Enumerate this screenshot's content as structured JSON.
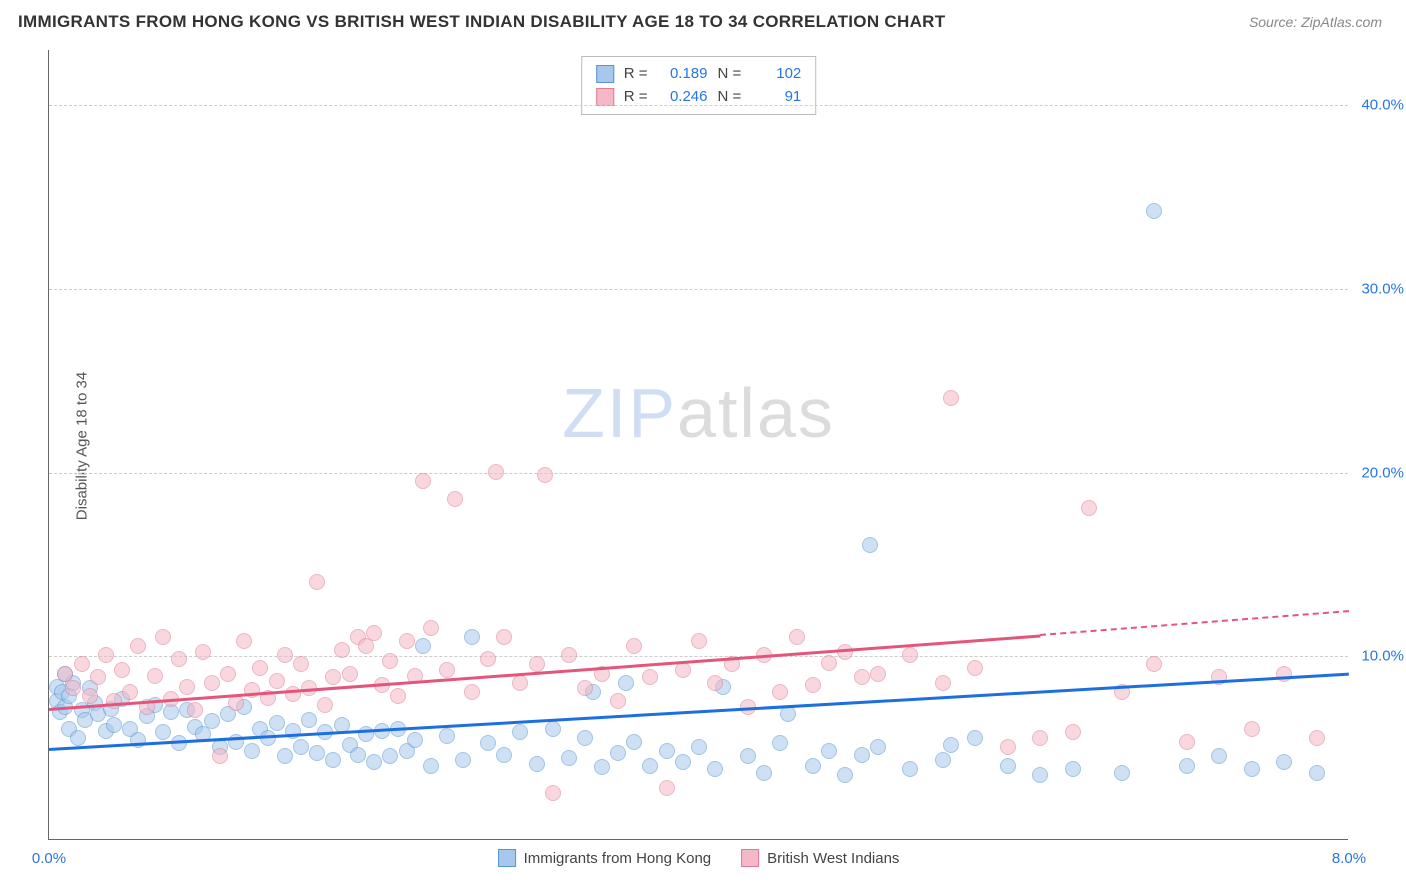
{
  "title": "IMMIGRANTS FROM HONG KONG VS BRITISH WEST INDIAN DISABILITY AGE 18 TO 34 CORRELATION CHART",
  "source": "Source: ZipAtlas.com",
  "ylabel": "Disability Age 18 to 34",
  "watermark_a": "ZIP",
  "watermark_b": "atlas",
  "chart": {
    "type": "scatter",
    "xlim": [
      0,
      8
    ],
    "ylim": [
      0,
      43
    ],
    "xticks": [
      {
        "v": 0,
        "l": "0.0%"
      },
      {
        "v": 8,
        "l": "8.0%"
      }
    ],
    "yticks": [
      {
        "v": 10,
        "l": "10.0%"
      },
      {
        "v": 20,
        "l": "20.0%"
      },
      {
        "v": 30,
        "l": "30.0%"
      },
      {
        "v": 40,
        "l": "40.0%"
      }
    ],
    "grid_color": "#cccccc",
    "background_color": "#ffffff",
    "axis_color": "#666666",
    "tick_color": "#2874e8",
    "marker_radius": 8,
    "marker_opacity": 0.55,
    "series": [
      {
        "name": "Immigrants from Hong Kong",
        "fill": "#a6c8ec",
        "stroke": "#5a93d1",
        "trend_color": "#1d6fe0",
        "trend": {
          "x1": 0,
          "y1": 5.0,
          "x2": 8,
          "y2": 9.1,
          "dash_from_x": 8
        },
        "R": "0.189",
        "N": "102",
        "points": [
          [
            0.05,
            7.5
          ],
          [
            0.05,
            8.3
          ],
          [
            0.07,
            6.9
          ],
          [
            0.08,
            8.0
          ],
          [
            0.1,
            7.2
          ],
          [
            0.1,
            9.0
          ],
          [
            0.12,
            6.0
          ],
          [
            0.12,
            7.8
          ],
          [
            0.15,
            8.5
          ],
          [
            0.18,
            5.5
          ],
          [
            0.2,
            7.0
          ],
          [
            0.22,
            6.5
          ],
          [
            0.25,
            8.2
          ],
          [
            0.28,
            7.4
          ],
          [
            0.3,
            6.8
          ],
          [
            0.35,
            5.9
          ],
          [
            0.38,
            7.1
          ],
          [
            0.4,
            6.2
          ],
          [
            0.45,
            7.6
          ],
          [
            0.5,
            6.0
          ],
          [
            0.55,
            5.4
          ],
          [
            0.6,
            6.7
          ],
          [
            0.65,
            7.3
          ],
          [
            0.7,
            5.8
          ],
          [
            0.75,
            6.9
          ],
          [
            0.8,
            5.2
          ],
          [
            0.85,
            7.0
          ],
          [
            0.9,
            6.1
          ],
          [
            0.95,
            5.7
          ],
          [
            1.0,
            6.4
          ],
          [
            1.05,
            5.0
          ],
          [
            1.1,
            6.8
          ],
          [
            1.15,
            5.3
          ],
          [
            1.2,
            7.2
          ],
          [
            1.25,
            4.8
          ],
          [
            1.3,
            6.0
          ],
          [
            1.35,
            5.5
          ],
          [
            1.4,
            6.3
          ],
          [
            1.45,
            4.5
          ],
          [
            1.5,
            5.9
          ],
          [
            1.55,
            5.0
          ],
          [
            1.6,
            6.5
          ],
          [
            1.65,
            4.7
          ],
          [
            1.7,
            5.8
          ],
          [
            1.75,
            4.3
          ],
          [
            1.8,
            6.2
          ],
          [
            1.85,
            5.1
          ],
          [
            1.9,
            4.6
          ],
          [
            1.95,
            5.7
          ],
          [
            2.0,
            4.2
          ],
          [
            2.05,
            5.9
          ],
          [
            2.1,
            4.5
          ],
          [
            2.15,
            6.0
          ],
          [
            2.2,
            4.8
          ],
          [
            2.25,
            5.4
          ],
          [
            2.3,
            10.5
          ],
          [
            2.35,
            4.0
          ],
          [
            2.45,
            5.6
          ],
          [
            2.55,
            4.3
          ],
          [
            2.6,
            11.0
          ],
          [
            2.7,
            5.2
          ],
          [
            2.8,
            4.6
          ],
          [
            2.9,
            5.8
          ],
          [
            3.0,
            4.1
          ],
          [
            3.1,
            6.0
          ],
          [
            3.2,
            4.4
          ],
          [
            3.3,
            5.5
          ],
          [
            3.35,
            8.0
          ],
          [
            3.4,
            3.9
          ],
          [
            3.5,
            4.7
          ],
          [
            3.55,
            8.5
          ],
          [
            3.6,
            5.3
          ],
          [
            3.7,
            4.0
          ],
          [
            3.8,
            4.8
          ],
          [
            3.9,
            4.2
          ],
          [
            4.0,
            5.0
          ],
          [
            4.1,
            3.8
          ],
          [
            4.15,
            8.3
          ],
          [
            4.3,
            4.5
          ],
          [
            4.4,
            3.6
          ],
          [
            4.5,
            5.2
          ],
          [
            4.55,
            6.8
          ],
          [
            4.7,
            4.0
          ],
          [
            4.8,
            4.8
          ],
          [
            4.9,
            3.5
          ],
          [
            5.0,
            4.6
          ],
          [
            5.05,
            16.0
          ],
          [
            5.1,
            5.0
          ],
          [
            5.3,
            3.8
          ],
          [
            5.5,
            4.3
          ],
          [
            5.55,
            5.1
          ],
          [
            5.7,
            5.5
          ],
          [
            5.9,
            4.0
          ],
          [
            6.1,
            3.5
          ],
          [
            6.3,
            3.8
          ],
          [
            6.6,
            3.6
          ],
          [
            6.8,
            34.2
          ],
          [
            7.0,
            4.0
          ],
          [
            7.2,
            4.5
          ],
          [
            7.4,
            3.8
          ],
          [
            7.6,
            4.2
          ],
          [
            7.8,
            3.6
          ]
        ]
      },
      {
        "name": "British West Indians",
        "fill": "#f4b8c6",
        "stroke": "#e07a95",
        "trend_color": "#e4557c",
        "trend": {
          "x1": 0,
          "y1": 7.2,
          "x2": 6.1,
          "y2": 11.2,
          "dash_from_x": 6.1,
          "dash_x2": 8,
          "dash_y2": 12.5
        },
        "R": "0.246",
        "N": "91",
        "points": [
          [
            0.1,
            9.0
          ],
          [
            0.15,
            8.2
          ],
          [
            0.2,
            9.5
          ],
          [
            0.25,
            7.8
          ],
          [
            0.3,
            8.8
          ],
          [
            0.35,
            10.0
          ],
          [
            0.4,
            7.5
          ],
          [
            0.45,
            9.2
          ],
          [
            0.5,
            8.0
          ],
          [
            0.55,
            10.5
          ],
          [
            0.6,
            7.2
          ],
          [
            0.65,
            8.9
          ],
          [
            0.7,
            11.0
          ],
          [
            0.75,
            7.6
          ],
          [
            0.8,
            9.8
          ],
          [
            0.85,
            8.3
          ],
          [
            0.9,
            7.0
          ],
          [
            0.95,
            10.2
          ],
          [
            1.0,
            8.5
          ],
          [
            1.05,
            4.5
          ],
          [
            1.1,
            9.0
          ],
          [
            1.15,
            7.4
          ],
          [
            1.2,
            10.8
          ],
          [
            1.25,
            8.1
          ],
          [
            1.3,
            9.3
          ],
          [
            1.35,
            7.7
          ],
          [
            1.4,
            8.6
          ],
          [
            1.45,
            10.0
          ],
          [
            1.5,
            7.9
          ],
          [
            1.55,
            9.5
          ],
          [
            1.6,
            8.2
          ],
          [
            1.65,
            14.0
          ],
          [
            1.7,
            7.3
          ],
          [
            1.75,
            8.8
          ],
          [
            1.8,
            10.3
          ],
          [
            1.85,
            9.0
          ],
          [
            1.9,
            11.0
          ],
          [
            1.95,
            10.5
          ],
          [
            2.0,
            11.2
          ],
          [
            2.05,
            8.4
          ],
          [
            2.1,
            9.7
          ],
          [
            2.15,
            7.8
          ],
          [
            2.2,
            10.8
          ],
          [
            2.25,
            8.9
          ],
          [
            2.3,
            19.5
          ],
          [
            2.35,
            11.5
          ],
          [
            2.45,
            9.2
          ],
          [
            2.5,
            18.5
          ],
          [
            2.6,
            8.0
          ],
          [
            2.7,
            9.8
          ],
          [
            2.75,
            20.0
          ],
          [
            2.8,
            11.0
          ],
          [
            2.9,
            8.5
          ],
          [
            3.0,
            9.5
          ],
          [
            3.05,
            19.8
          ],
          [
            3.1,
            2.5
          ],
          [
            3.2,
            10.0
          ],
          [
            3.3,
            8.2
          ],
          [
            3.4,
            9.0
          ],
          [
            3.5,
            7.5
          ],
          [
            3.6,
            10.5
          ],
          [
            3.7,
            8.8
          ],
          [
            3.8,
            2.8
          ],
          [
            3.9,
            9.2
          ],
          [
            4.0,
            10.8
          ],
          [
            4.1,
            8.5
          ],
          [
            4.2,
            9.5
          ],
          [
            4.3,
            7.2
          ],
          [
            4.4,
            10.0
          ],
          [
            4.5,
            8.0
          ],
          [
            4.6,
            11.0
          ],
          [
            4.7,
            8.4
          ],
          [
            4.8,
            9.6
          ],
          [
            4.9,
            10.2
          ],
          [
            5.0,
            8.8
          ],
          [
            5.1,
            9.0
          ],
          [
            5.3,
            10.0
          ],
          [
            5.5,
            8.5
          ],
          [
            5.55,
            24.0
          ],
          [
            5.7,
            9.3
          ],
          [
            5.9,
            5.0
          ],
          [
            6.1,
            5.5
          ],
          [
            6.3,
            5.8
          ],
          [
            6.4,
            18.0
          ],
          [
            6.6,
            8.0
          ],
          [
            6.8,
            9.5
          ],
          [
            7.0,
            5.3
          ],
          [
            7.2,
            8.8
          ],
          [
            7.4,
            6.0
          ],
          [
            7.6,
            9.0
          ],
          [
            7.8,
            5.5
          ]
        ]
      }
    ]
  },
  "legend_bottom": [
    {
      "swatch_fill": "#a6c8ec",
      "swatch_stroke": "#5a93d1",
      "label": "Immigrants from Hong Kong"
    },
    {
      "swatch_fill": "#f4b8c6",
      "swatch_stroke": "#e07a95",
      "label": "British West Indians"
    }
  ]
}
